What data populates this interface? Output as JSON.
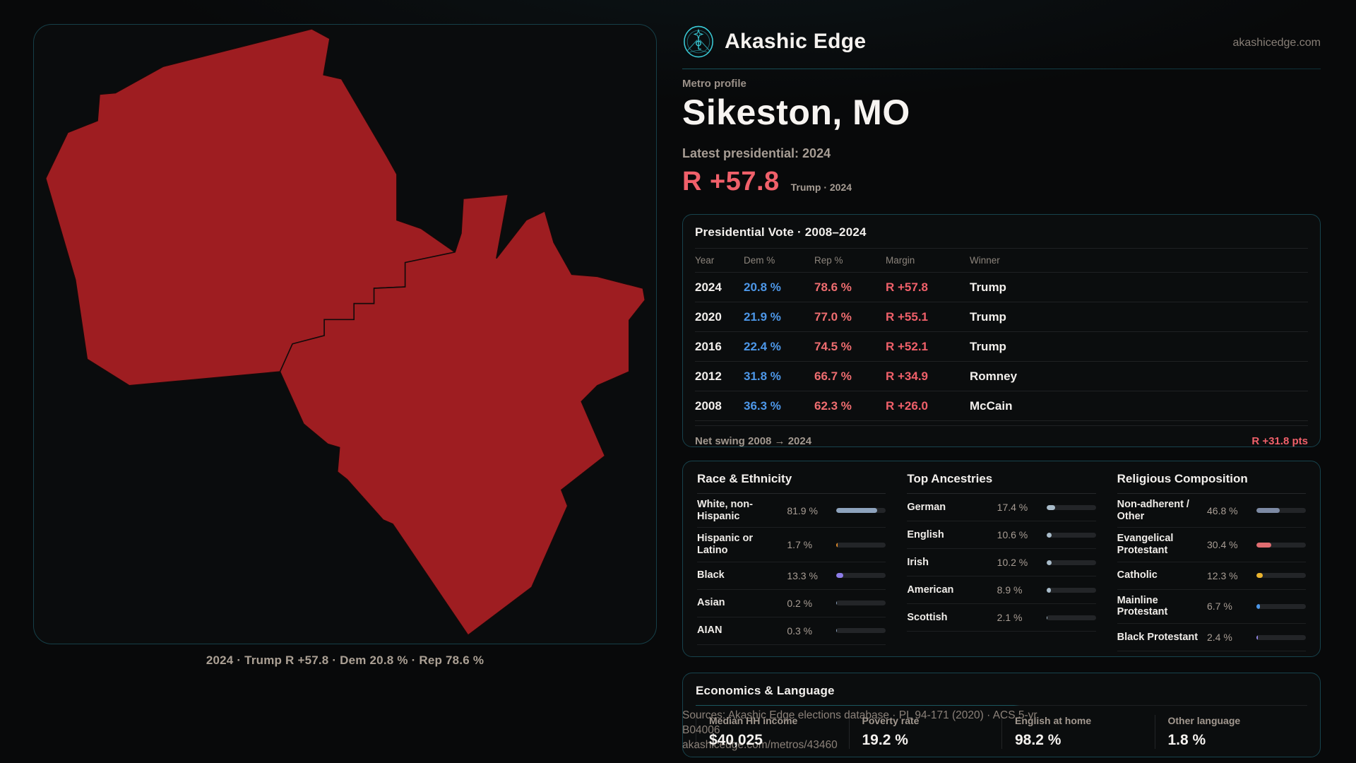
{
  "colors": {
    "page-bg": "#08090a",
    "card-bg": "#0b0d0e",
    "card-border": "#17434d",
    "teal": "#3bcdd9",
    "text": "#f2efec",
    "muted": "#a49a91",
    "muted2": "#8b8178",
    "dem": "#4d97e8",
    "rep": "#ef6d70",
    "red": "#f0606a",
    "map": "#9e1d21",
    "track": "#232528",
    "divider": "#1f2123"
  },
  "brand": {
    "name": "Akashic Edge",
    "domain": "akashicedge.com"
  },
  "profile": {
    "kicker": "Metro profile",
    "title": "Sikeston, MO",
    "latest_label": "Latest presidential: 2024",
    "margin_value": "R +57.8",
    "margin_context": "Trump · 2024"
  },
  "map": {
    "caption": "2024 · Trump R +57.8 · Dem 20.8 % · Rep 78.6 %"
  },
  "vote_table": {
    "title": "Presidential Vote · 2008–2024",
    "columns": {
      "year": "Year",
      "dem": "Dem %",
      "rep": "Rep %",
      "margin": "Margin",
      "winner": "Winner"
    },
    "rows": [
      {
        "year": "2024",
        "dem": "20.8 %",
        "rep": "78.6 %",
        "margin": "R +57.8",
        "winner": "Trump"
      },
      {
        "year": "2020",
        "dem": "21.9 %",
        "rep": "77.0 %",
        "margin": "R +55.1",
        "winner": "Trump"
      },
      {
        "year": "2016",
        "dem": "22.4 %",
        "rep": "74.5 %",
        "margin": "R +52.1",
        "winner": "Trump"
      },
      {
        "year": "2012",
        "dem": "31.8 %",
        "rep": "66.7 %",
        "margin": "R +34.9",
        "winner": "Romney"
      },
      {
        "year": "2008",
        "dem": "36.3 %",
        "rep": "62.3 %",
        "margin": "R +26.0",
        "winner": "McCain"
      }
    ],
    "footer_label": "Net swing 2008 → 2024",
    "footer_value": "R +31.8 pts"
  },
  "race": {
    "title": "Race & Ethnicity",
    "rows": [
      {
        "label": "White, non-Hispanic",
        "value": "81.9 %",
        "pct": 81.9,
        "color": "#8ea3bd"
      },
      {
        "label": "Hispanic or Latino",
        "value": "1.7 %",
        "pct": 1.7,
        "color": "#e08a2a"
      },
      {
        "label": "Black",
        "value": "13.3 %",
        "pct": 13.3,
        "color": "#8d7ce8"
      },
      {
        "label": "Asian",
        "value": "0.2 %",
        "pct": 0.2,
        "color": "#8ea3bd"
      },
      {
        "label": "AIAN",
        "value": "0.3 %",
        "pct": 0.3,
        "color": "#8ea3bd"
      }
    ]
  },
  "ancestries": {
    "title": "Top Ancestries",
    "rows": [
      {
        "label": "German",
        "value": "17.4 %",
        "pct": 17.4,
        "color": "#a9bcca"
      },
      {
        "label": "English",
        "value": "10.6 %",
        "pct": 10.6,
        "color": "#a9bcca"
      },
      {
        "label": "Irish",
        "value": "10.2 %",
        "pct": 10.2,
        "color": "#a9bcca"
      },
      {
        "label": "American",
        "value": "8.9 %",
        "pct": 8.9,
        "color": "#a9bcca"
      },
      {
        "label": "Scottish",
        "value": "2.1 %",
        "pct": 2.1,
        "color": "#a9bcca"
      }
    ]
  },
  "religion": {
    "title": "Religious Composition",
    "rows": [
      {
        "label": "Non-adherent / Other",
        "value": "46.8 %",
        "pct": 46.8,
        "color": "#7d8aa4"
      },
      {
        "label": "Evangelical Protestant",
        "value": "30.4 %",
        "pct": 30.4,
        "color": "#e06c70"
      },
      {
        "label": "Catholic",
        "value": "12.3 %",
        "pct": 12.3,
        "color": "#eab32e"
      },
      {
        "label": "Mainline Protestant",
        "value": "6.7 %",
        "pct": 6.7,
        "color": "#4b96e8"
      },
      {
        "label": "Black Protestant",
        "value": "2.4 %",
        "pct": 2.4,
        "color": "#9486e8"
      }
    ]
  },
  "economics": {
    "title": "Economics & Language",
    "stats": [
      {
        "label": "Median HH income",
        "value": "$40,025"
      },
      {
        "label": "Poverty rate",
        "value": "19.2 %"
      },
      {
        "label": "English at home",
        "value": "98.2 %"
      },
      {
        "label": "Other language",
        "value": "1.8 %"
      }
    ]
  },
  "source": {
    "line1": "Sources: Akashic Edge elections database · PL 94-171 (2020) · ACS 5-yr B04006",
    "line2": "akashicedge.com/metros/43460"
  }
}
